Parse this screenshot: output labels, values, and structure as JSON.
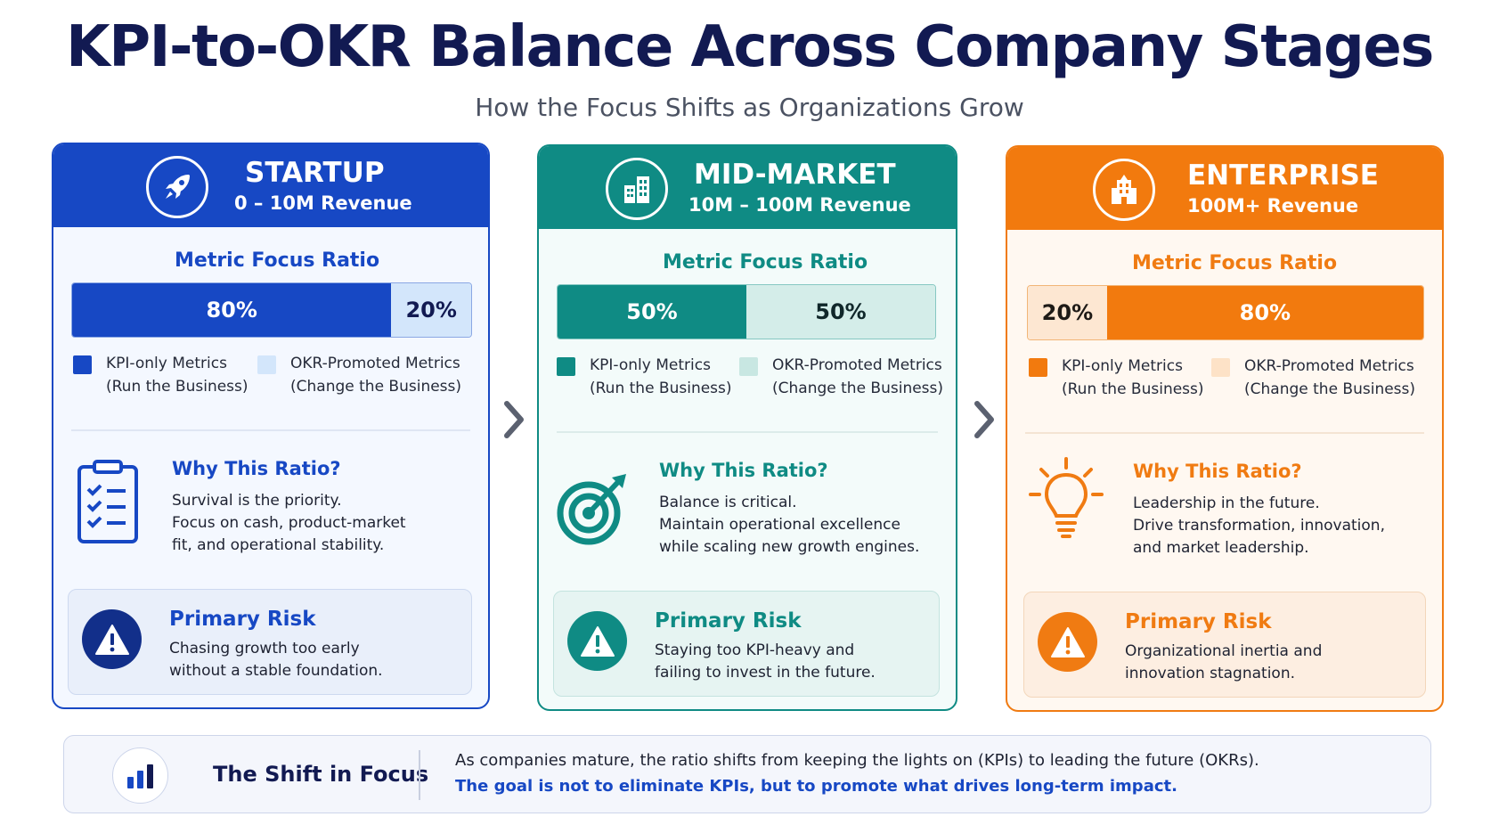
{
  "title": "KPI-to-OKR Balance Across Company Stages",
  "subtitle": "How the Focus Shifts as Organizations Grow",
  "colors": {
    "startup": "#1748c4",
    "startup_light": "#d3e6fb",
    "midmarket": "#0f8b84",
    "midmarket_light": "#d4ede9",
    "enterprise": "#f27a0e",
    "enterprise_light": "#fde7d2"
  },
  "stages": [
    {
      "name": "STARTUP",
      "revenue": "0 – 10M Revenue",
      "icon": "rocket-icon",
      "ratio_title": "Metric Focus Ratio",
      "kpi_share": 80,
      "okr_share": 20,
      "kpi_label": "80%",
      "okr_label": "20%",
      "legend_kpi_1": "KPI-only Metrics",
      "legend_kpi_2": "(Run the Business)",
      "legend_okr_1": "OKR-Promoted Metrics",
      "legend_okr_2": "(Change the Business)",
      "why_title": "Why This Ratio?",
      "why_icon": "clipboard-checklist-icon",
      "why_lines": [
        "Survival is the priority.",
        "Focus on cash, product-market",
        "fit, and operational stability."
      ],
      "risk_title": "Primary Risk",
      "risk_lines": [
        "Chasing growth too early",
        "without a stable foundation."
      ]
    },
    {
      "name": "MID-MARKET",
      "revenue": "10M – 100M Revenue",
      "icon": "buildings-icon",
      "ratio_title": "Metric Focus Ratio",
      "kpi_share": 50,
      "okr_share": 50,
      "kpi_label": "50%",
      "okr_label": "50%",
      "legend_kpi_1": "KPI-only Metrics",
      "legend_kpi_2": "(Run the Business)",
      "legend_okr_1": "OKR-Promoted Metrics",
      "legend_okr_2": "(Change the Business)",
      "why_title": "Why This Ratio?",
      "why_icon": "target-arrow-icon",
      "why_lines": [
        "Balance is critical.",
        "Maintain operational excellence",
        "while scaling new growth engines."
      ],
      "risk_title": "Primary Risk",
      "risk_lines": [
        "Staying too KPI-heavy and",
        "failing to invest in the future."
      ]
    },
    {
      "name": "ENTERPRISE",
      "revenue": "100M+ Revenue",
      "icon": "office-building-icon",
      "ratio_title": "Metric Focus Ratio",
      "kpi_share": 20,
      "okr_share": 80,
      "kpi_label": "20%",
      "okr_label": "80%",
      "legend_kpi_1": "KPI-only Metrics",
      "legend_kpi_2": "(Run the Business)",
      "legend_okr_1": "OKR-Promoted Metrics",
      "legend_okr_2": "(Change the Business)",
      "why_title": "Why This Ratio?",
      "why_icon": "lightbulb-icon",
      "why_lines": [
        "Leadership in the future.",
        "Drive transformation, innovation,",
        "and market leadership."
      ],
      "risk_title": "Primary Risk",
      "risk_lines": [
        "Organizational inertia and",
        "innovation stagnation."
      ]
    }
  ],
  "shift": {
    "icon": "bar-chart-icon",
    "title": "The Shift in Focus",
    "line1": "As companies mature, the ratio shifts from keeping the lights on (KPIs) to leading the future (OKRs).",
    "line2": "The goal is not to eliminate KPIs, but to promote what drives long-term impact."
  }
}
